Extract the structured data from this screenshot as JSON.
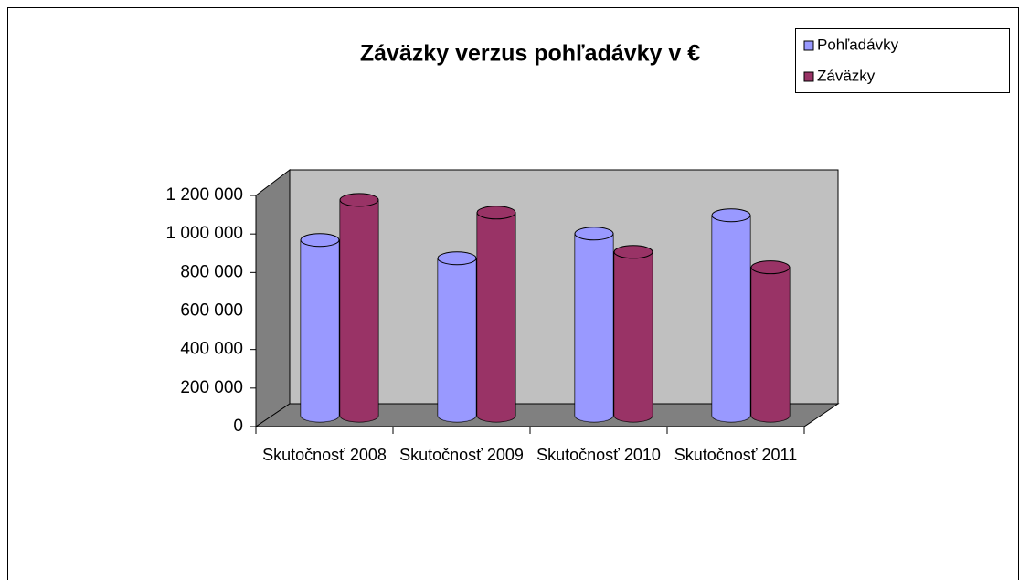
{
  "chart_data": {
    "type": "bar3d",
    "title": "Záväzky verzus pohľadávky v €",
    "categories": [
      "Skutočnosť 2008",
      "Skutočnosť 2009",
      "Skutočnosť 2010",
      "Skutočnosť 2011"
    ],
    "series": [
      {
        "name": "Pohľadávky",
        "color": "#9999ff",
        "values": [
          912000,
          817000,
          945000,
          1040000
        ]
      },
      {
        "name": "Záväzky",
        "color": "#993366",
        "values": [
          1120000,
          1054000,
          850000,
          770000
        ]
      }
    ],
    "ylim": [
      0,
      1200000
    ],
    "yticks": [
      0,
      {
        "value": 200000,
        "label": "200 000"
      },
      {
        "value": 400000,
        "label": "400 000"
      },
      {
        "value": 600000,
        "label": "600 000"
      },
      {
        "value": 800000,
        "label": "800 000"
      },
      {
        "value": 1000000,
        "label": "1 000 000"
      },
      {
        "value": 1200000,
        "label": "1 200 000"
      }
    ],
    "grid": false,
    "legend": "top-right"
  }
}
